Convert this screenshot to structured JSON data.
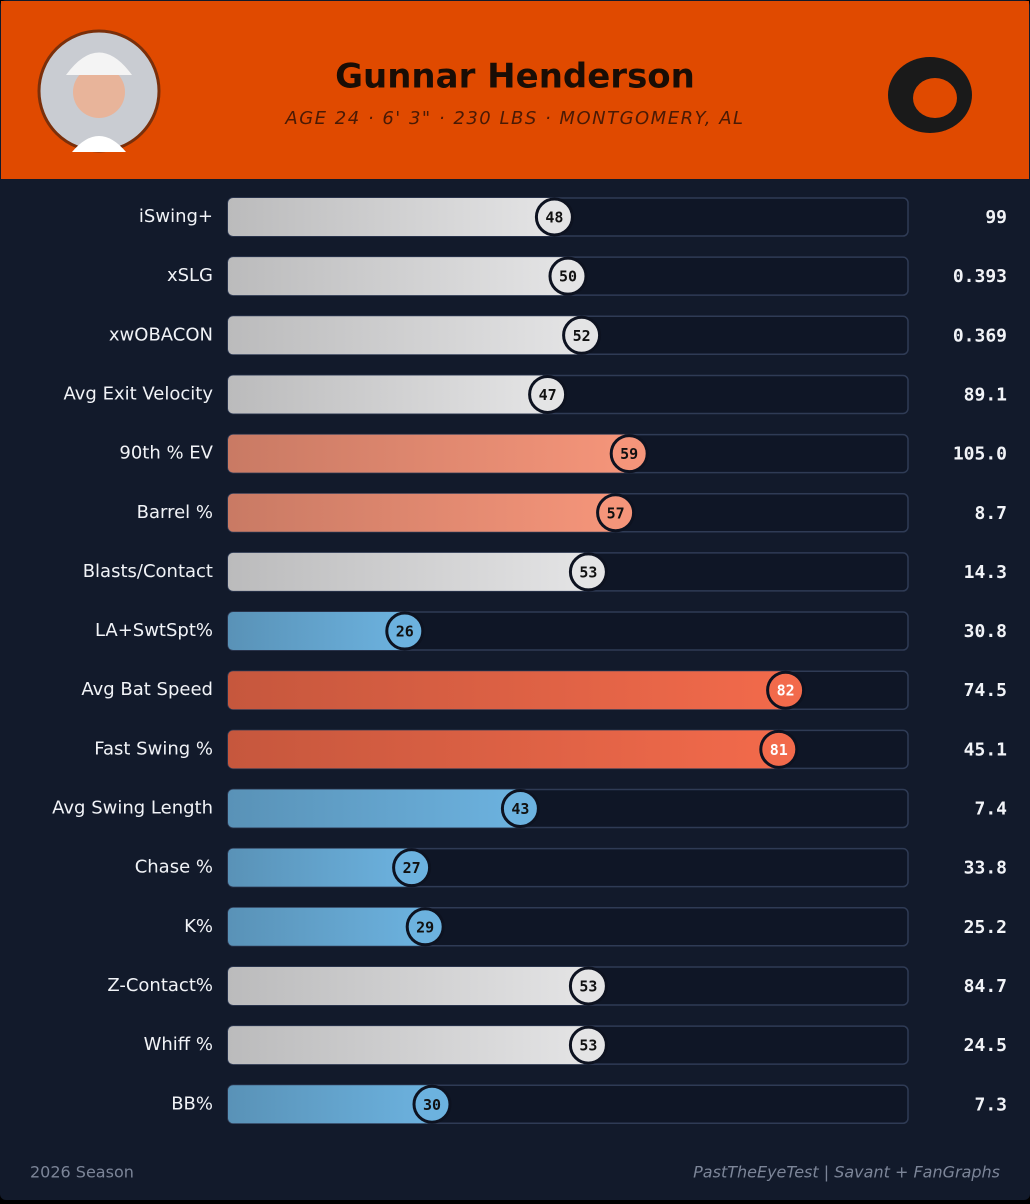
{
  "chart_data": {
    "type": "percentile-bar",
    "title": "Gunnar Henderson",
    "subtitle": "AGE 24 · 6' 3\" · 230 LBS · MONTGOMERY, AL",
    "categories": [
      "iSwing+",
      "xSLG",
      "xwOBACON",
      "Avg Exit Velocity",
      "90th % EV",
      "Barrel %",
      "Blasts/Contact",
      "LA+SwtSpt%",
      "Avg Bat Speed",
      "Fast Swing %",
      "Avg Swing Length",
      "Chase %",
      "K%",
      "Z-Contact%",
      "Whiff %",
      "BB%"
    ],
    "values": [
      48,
      50,
      52,
      47,
      59,
      57,
      53,
      26,
      82,
      81,
      43,
      27,
      29,
      53,
      53,
      30
    ],
    "stats": [
      "99",
      "0.393",
      "0.369",
      "89.1",
      "105.0",
      "8.7",
      "14.3",
      "30.8",
      "74.5",
      "45.1",
      "7.4",
      "33.8",
      "25.2",
      "84.7",
      "24.5",
      "7.3"
    ],
    "colors": [
      "#e4e4e5",
      "#e4e4e5",
      "#e4e4e5",
      "#e4e4e5",
      "#f5957a",
      "#f5957a",
      "#e4e4e5",
      "#6cb2df",
      "#f26a4b",
      "#f26a4b",
      "#6cb2df",
      "#6cb2df",
      "#6cb2df",
      "#e4e4e5",
      "#e4e4e5",
      "#6cb2df"
    ],
    "xlim": [
      0,
      100
    ],
    "footer_left": "2026 Season",
    "footer_right": "PastTheEyeTest | Savant + FanGraphs"
  }
}
